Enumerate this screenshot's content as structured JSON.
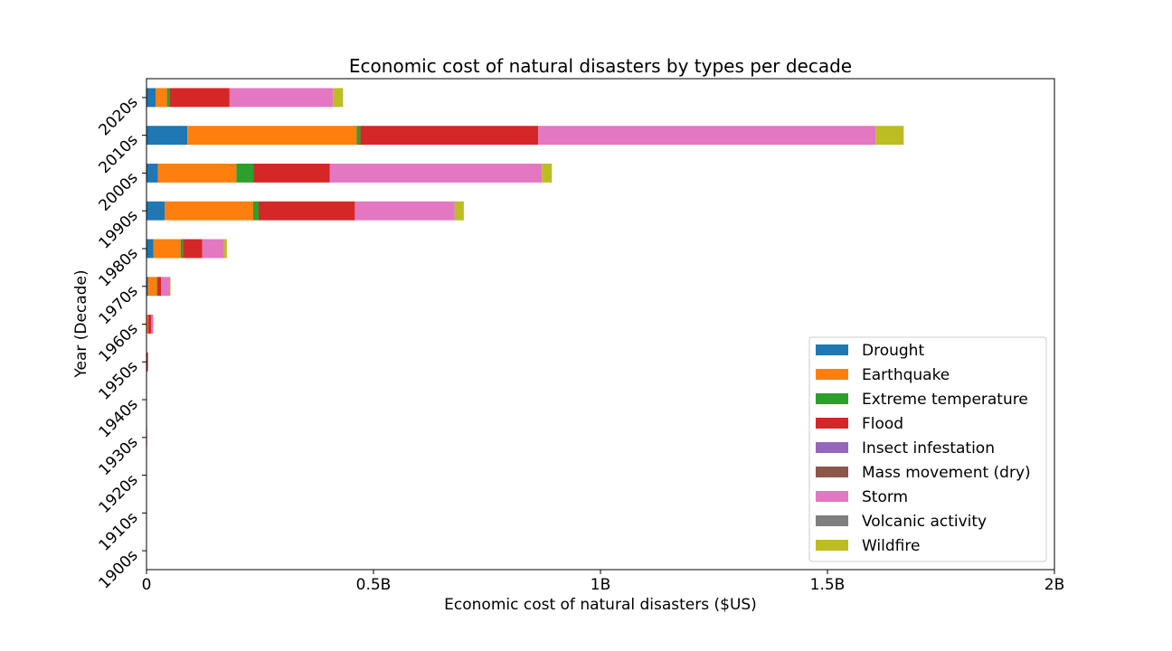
{
  "chart_data": {
    "type": "bar",
    "orientation": "horizontal",
    "stacked": true,
    "title": "Economic cost of natural disasters by types per decade",
    "xlabel": "Economic cost of natural disasters ($US)",
    "ylabel": "Year (Decade)",
    "xlim": [
      0,
      2000000000
    ],
    "x_ticks": [
      {
        "value": 0,
        "label": "0"
      },
      {
        "value": 500000000,
        "label": "0.5B"
      },
      {
        "value": 1000000000,
        "label": "1B"
      },
      {
        "value": 1500000000,
        "label": "1.5B"
      },
      {
        "value": 2000000000,
        "label": "2B"
      }
    ],
    "categories": [
      "1900s",
      "1910s",
      "1920s",
      "1930s",
      "1940s",
      "1950s",
      "1960s",
      "1970s",
      "1980s",
      "1990s",
      "2000s",
      "2010s",
      "2020s"
    ],
    "grid": false,
    "legend_position": "lower-right",
    "series": [
      {
        "name": "Drought",
        "color": "#1f77b4",
        "values": [
          0,
          0,
          0,
          0,
          0,
          0,
          0,
          3000000,
          15000000,
          40000000,
          25000000,
          90000000,
          20000000
        ]
      },
      {
        "name": "Earthquake",
        "color": "#ff7f0e",
        "values": [
          0,
          0,
          0,
          0,
          0,
          0,
          4000000,
          20000000,
          60000000,
          195000000,
          173000000,
          373000000,
          25000000
        ]
      },
      {
        "name": "Extreme temperature",
        "color": "#2ca02c",
        "values": [
          0,
          0,
          0,
          0,
          0,
          0,
          0,
          1000000,
          5000000,
          12000000,
          38000000,
          8000000,
          6000000
        ]
      },
      {
        "name": "Flood",
        "color": "#d62728",
        "values": [
          500000,
          0,
          0,
          1000000,
          1000000,
          3000000,
          6000000,
          8000000,
          43000000,
          212000000,
          168000000,
          392000000,
          132000000
        ]
      },
      {
        "name": "Insect infestation",
        "color": "#9467bd",
        "values": [
          0,
          0,
          0,
          0,
          0,
          0,
          0,
          0,
          0,
          0,
          0,
          0,
          0
        ]
      },
      {
        "name": "Mass movement (dry)",
        "color": "#8c564b",
        "values": [
          0,
          0,
          0,
          0,
          0,
          0,
          0,
          0,
          0,
          0,
          0,
          0,
          0
        ]
      },
      {
        "name": "Storm",
        "color": "#e377c2",
        "values": [
          0,
          0,
          0,
          500000,
          0,
          500000,
          5000000,
          20000000,
          48000000,
          220000000,
          467000000,
          743000000,
          228000000
        ]
      },
      {
        "name": "Volcanic activity",
        "color": "#7f7f7f",
        "values": [
          0,
          0,
          0,
          0,
          0,
          0,
          0,
          0,
          0,
          0,
          0,
          0,
          0
        ]
      },
      {
        "name": "Wildfire",
        "color": "#bcbd22",
        "values": [
          0,
          0,
          0,
          0,
          0,
          0,
          0,
          1000000,
          6000000,
          20000000,
          22000000,
          62000000,
          22000000
        ]
      }
    ]
  }
}
